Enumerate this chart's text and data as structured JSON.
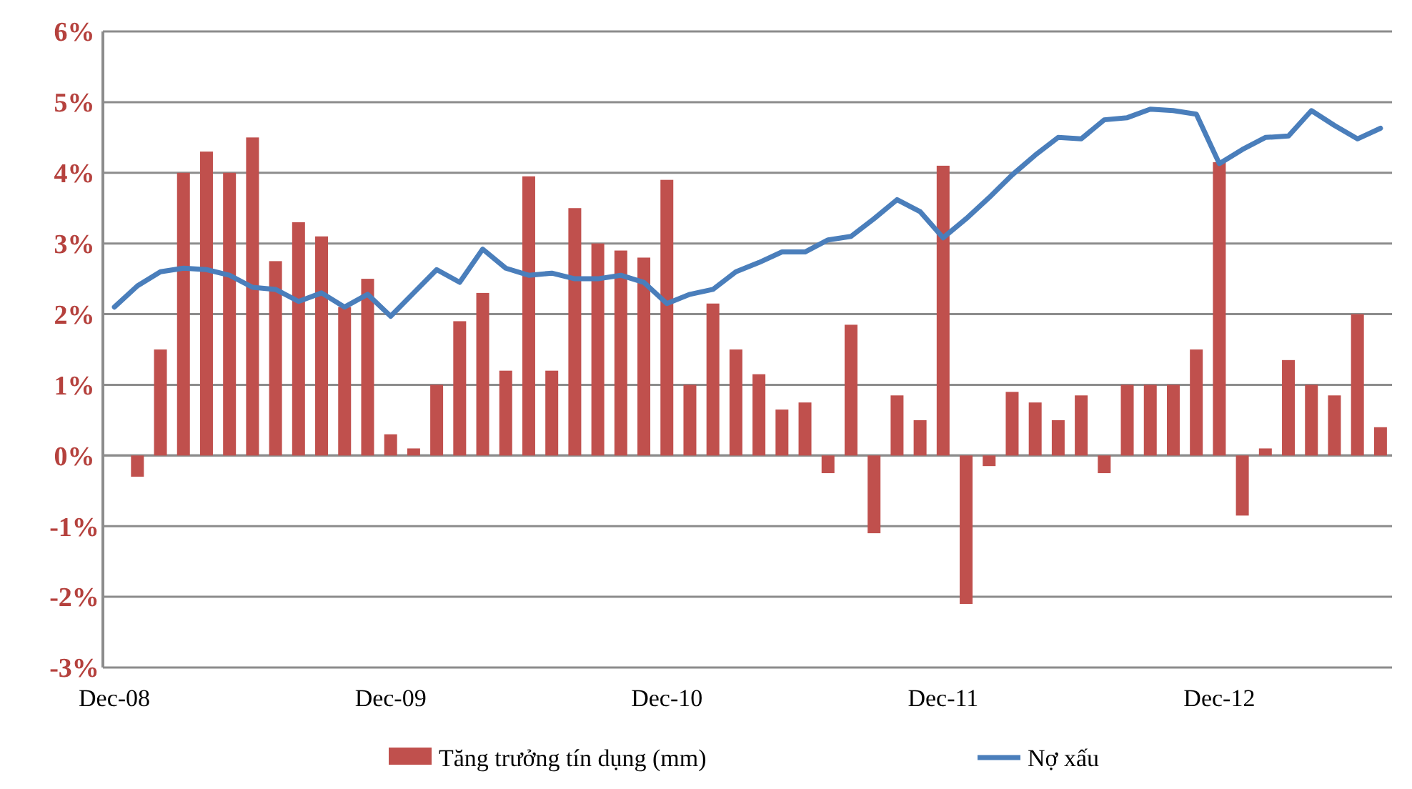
{
  "chart_data": {
    "type": "bar",
    "categories": [
      "Dec-08",
      null,
      null,
      null,
      null,
      null,
      null,
      null,
      null,
      null,
      null,
      null,
      "Dec-09",
      null,
      null,
      null,
      null,
      null,
      null,
      null,
      null,
      null,
      null,
      null,
      "Dec-10",
      null,
      null,
      null,
      null,
      null,
      null,
      null,
      null,
      null,
      null,
      null,
      "Dec-11",
      null,
      null,
      null,
      null,
      null,
      null,
      null,
      null,
      null,
      null,
      null,
      "Dec-12",
      null,
      null,
      null,
      null,
      null,
      null,
      null
    ],
    "series": [
      {
        "name": "Tăng trưởng tín dụng (mm)",
        "color": "#c0504d",
        "values": [
          null,
          -0.3,
          1.5,
          4.0,
          4.3,
          4.0,
          4.5,
          2.75,
          3.3,
          3.1,
          2.1,
          2.5,
          0.3,
          0.1,
          1.0,
          1.9,
          2.3,
          1.2,
          3.95,
          1.2,
          3.5,
          3.0,
          2.9,
          2.8,
          3.9,
          1.0,
          2.15,
          1.5,
          1.15,
          0.65,
          0.75,
          -0.25,
          1.85,
          -1.1,
          0.85,
          0.5,
          4.1,
          -2.1,
          -0.15,
          0.9,
          0.75,
          0.5,
          0.85,
          -0.25,
          1.0,
          1.0,
          1.0,
          1.5,
          4.15,
          -0.85,
          0.1,
          1.35,
          1.0,
          0.85,
          2.0,
          0.4
        ]
      },
      {
        "name": "Nợ xấu",
        "type": "line",
        "color": "#4a7ebb",
        "values": [
          2.1,
          2.4,
          2.6,
          2.65,
          2.63,
          2.55,
          2.38,
          2.35,
          2.18,
          2.3,
          2.1,
          2.28,
          1.97,
          2.3,
          2.63,
          2.45,
          2.92,
          2.65,
          2.55,
          2.58,
          2.5,
          2.5,
          2.55,
          2.45,
          2.15,
          2.28,
          2.35,
          2.6,
          2.73,
          2.88,
          2.88,
          3.05,
          3.1,
          3.35,
          3.62,
          3.45,
          3.08,
          3.35,
          3.65,
          3.97,
          4.25,
          4.5,
          4.48,
          4.75,
          4.78,
          4.9,
          4.88,
          4.83,
          4.13,
          4.33,
          4.5,
          4.52,
          4.88,
          4.67,
          4.48,
          4.63
        ]
      }
    ],
    "ylim": [
      -3,
      6
    ],
    "yticks": [
      {
        "value": -3,
        "label": "-3%"
      },
      {
        "value": -2,
        "label": "-2%"
      },
      {
        "value": -1,
        "label": "-1%"
      },
      {
        "value": 0,
        "label": "0%"
      },
      {
        "value": 1,
        "label": "1%"
      },
      {
        "value": 2,
        "label": "2%"
      },
      {
        "value": 3,
        "label": "3%"
      },
      {
        "value": 4,
        "label": "4%"
      },
      {
        "value": 5,
        "label": "5%"
      },
      {
        "value": 6,
        "label": "6%"
      }
    ],
    "grid": "y",
    "legend": "bottom",
    "marker": "none",
    "line_style": "solid"
  }
}
